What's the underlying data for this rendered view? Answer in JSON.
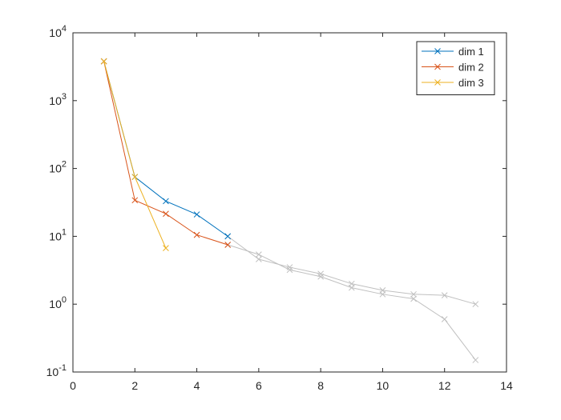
{
  "chart_data": {
    "type": "line",
    "x": [
      1,
      2,
      3,
      4,
      5,
      6,
      7,
      8,
      9,
      10,
      11,
      12,
      13
    ],
    "series": [
      {
        "name": "dim 1",
        "color": "#0072bd",
        "values": [
          3800,
          75,
          33,
          21,
          10,
          null,
          null,
          null,
          null,
          null,
          null,
          null,
          null
        ]
      },
      {
        "name": "dim 2",
        "color": "#d95319",
        "values": [
          3800,
          34,
          21.5,
          10.5,
          7.5,
          null,
          null,
          null,
          null,
          null,
          null,
          null,
          null
        ]
      },
      {
        "name": "dim 3",
        "color": "#edb120",
        "values": [
          3800,
          75,
          6.7,
          null,
          null,
          null,
          null,
          null,
          null,
          null,
          null,
          null,
          null
        ]
      },
      {
        "color": "#c0c0c0",
        "values": [
          null,
          null,
          null,
          null,
          10,
          4.6,
          3.5,
          2.8,
          2.0,
          1.6,
          1.4,
          1.35,
          1.0
        ]
      },
      {
        "color": "#c0c0c0",
        "values": [
          null,
          null,
          null,
          null,
          7.5,
          5.4,
          3.2,
          2.55,
          1.75,
          1.4,
          1.2,
          0.6,
          0.15
        ]
      }
    ],
    "marker": "x",
    "xlim": [
      0,
      14
    ],
    "xticks": [
      0,
      2,
      4,
      6,
      8,
      10,
      12,
      14
    ],
    "ylim": [
      0.1,
      10000
    ],
    "yticks": [
      {
        "value": 0.1,
        "label": "10^-1"
      },
      {
        "value": 1,
        "label": "10^0"
      },
      {
        "value": 10,
        "label": "10^1"
      },
      {
        "value": 100,
        "label": "10^2"
      },
      {
        "value": 1000,
        "label": "10^3"
      },
      {
        "value": 10000,
        "label": "10^4"
      }
    ],
    "ylog": true,
    "grid": false,
    "legend": "northeast"
  }
}
